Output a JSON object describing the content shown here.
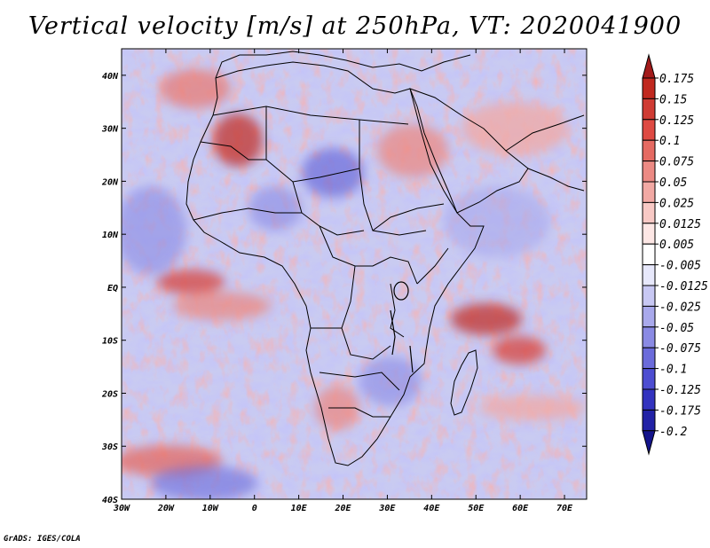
{
  "title": "Vertical velocity [m/s] at 250hPa, VT: 2020041900",
  "map": {
    "lon_range": [
      -30,
      75
    ],
    "lat_range": [
      -40,
      45
    ],
    "lon_ticks": [
      {
        "value": -30,
        "label": "30W"
      },
      {
        "value": -20,
        "label": "20W"
      },
      {
        "value": -10,
        "label": "10W"
      },
      {
        "value": 0,
        "label": "0"
      },
      {
        "value": 10,
        "label": "10E"
      },
      {
        "value": 20,
        "label": "20E"
      },
      {
        "value": 30,
        "label": "30E"
      },
      {
        "value": 40,
        "label": "40E"
      },
      {
        "value": 50,
        "label": "50E"
      },
      {
        "value": 60,
        "label": "60E"
      },
      {
        "value": 70,
        "label": "70E"
      }
    ],
    "lat_ticks": [
      {
        "value": 40,
        "label": "40N"
      },
      {
        "value": 30,
        "label": "30N"
      },
      {
        "value": 20,
        "label": "20N"
      },
      {
        "value": 10,
        "label": "10N"
      },
      {
        "value": 0,
        "label": "EQ"
      },
      {
        "value": -10,
        "label": "10S"
      },
      {
        "value": -20,
        "label": "20S"
      },
      {
        "value": -30,
        "label": "30S"
      },
      {
        "value": -40,
        "label": "40S"
      }
    ]
  },
  "colorbar": {
    "levels": [
      "0.175",
      "0.15",
      "0.125",
      "0.1",
      "0.075",
      "0.05",
      "0.025",
      "0.0125",
      "0.005",
      "-0.005",
      "-0.0125",
      "-0.025",
      "-0.05",
      "-0.075",
      "-0.1",
      "-0.125",
      "-0.175",
      "-0.2"
    ],
    "colors": [
      "#a31b1b",
      "#c0281f",
      "#cf3b33",
      "#de4a43",
      "#e56a62",
      "#ec8a84",
      "#f2a9a4",
      "#f8c9c5",
      "#fde7e5",
      "#ffffff",
      "#e7e8fb",
      "#c8c8f3",
      "#a9a9ec",
      "#8a8ae4",
      "#6b6bdb",
      "#4d4dd1",
      "#3333bf",
      "#2222a6",
      "#14148c"
    ]
  },
  "credit": "GrADS: IGES/COLA"
}
